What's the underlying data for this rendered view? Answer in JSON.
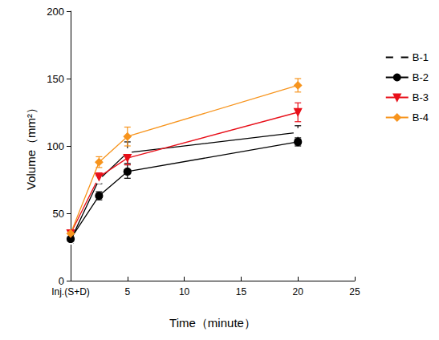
{
  "chart_data": {
    "type": "line",
    "x_label": "Time（minute）",
    "y_label": "Volume（mm²）",
    "x": [
      0,
      2.5,
      5,
      20
    ],
    "xlim": [
      0,
      25
    ],
    "xticks": [
      {
        "value": 0,
        "label": "Inj.(S+D)"
      },
      5,
      10,
      15,
      20,
      25
    ],
    "ylim": [
      0,
      200
    ],
    "yticks": [
      0,
      50,
      100,
      150,
      200
    ],
    "grid": false,
    "legend": "right",
    "series": [
      {
        "name": "B-1",
        "color": "#000000",
        "marker": "circle-open",
        "values": [
          30,
          75,
          95,
          110
        ],
        "errors": [
          2,
          3,
          8,
          5
        ]
      },
      {
        "name": "B-2",
        "color": "#000000",
        "marker": "circle",
        "values": [
          31,
          63,
          81,
          103
        ],
        "errors": [
          2,
          3,
          5,
          3
        ]
      },
      {
        "name": "B-3",
        "color": "#e8101a",
        "marker": "triangle-down",
        "values": [
          35,
          77,
          91,
          125
        ],
        "errors": [
          2,
          3,
          5,
          7
        ]
      },
      {
        "name": "B-4",
        "color": "#f7941d",
        "marker": "diamond",
        "values": [
          35,
          88,
          107,
          145
        ],
        "errors": [
          2,
          4,
          7,
          5
        ]
      }
    ]
  }
}
